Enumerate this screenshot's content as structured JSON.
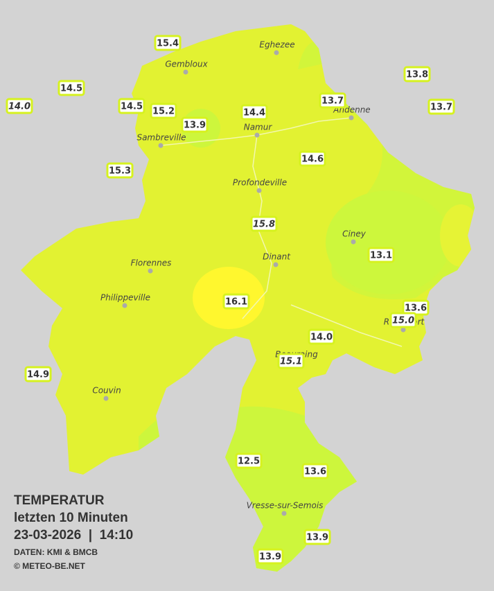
{
  "legend": {
    "title": "TEMPERATUR",
    "period": "letzten 10 Minuten",
    "datetime": "23-03-2026  |  14:10",
    "source": "DATEN: KMI & BMCB",
    "copyright": "© METEO-BE.NET"
  },
  "cities": [
    "Eghezee",
    "Gembloux",
    "Andenne",
    "Namur",
    "Sambreville",
    "Profondeville",
    "Ciney",
    "Dinant",
    "Florennes",
    "Philippeville",
    "Beauraing",
    "Couvin",
    "Rochefort",
    "Vresse-sur-Semois"
  ],
  "stations": [
    "15.4",
    "14.5",
    "14.0",
    "14.5",
    "15.2",
    "13.9",
    "14.4",
    "13.7",
    "13.8",
    "13.7",
    "14.6",
    "15.3",
    "15.8",
    "13.1",
    "16.1",
    "13.6",
    "15.0",
    "14.0",
    "15.1",
    "14.9",
    "12.5",
    "13.6",
    "13.9",
    "13.9"
  ]
}
